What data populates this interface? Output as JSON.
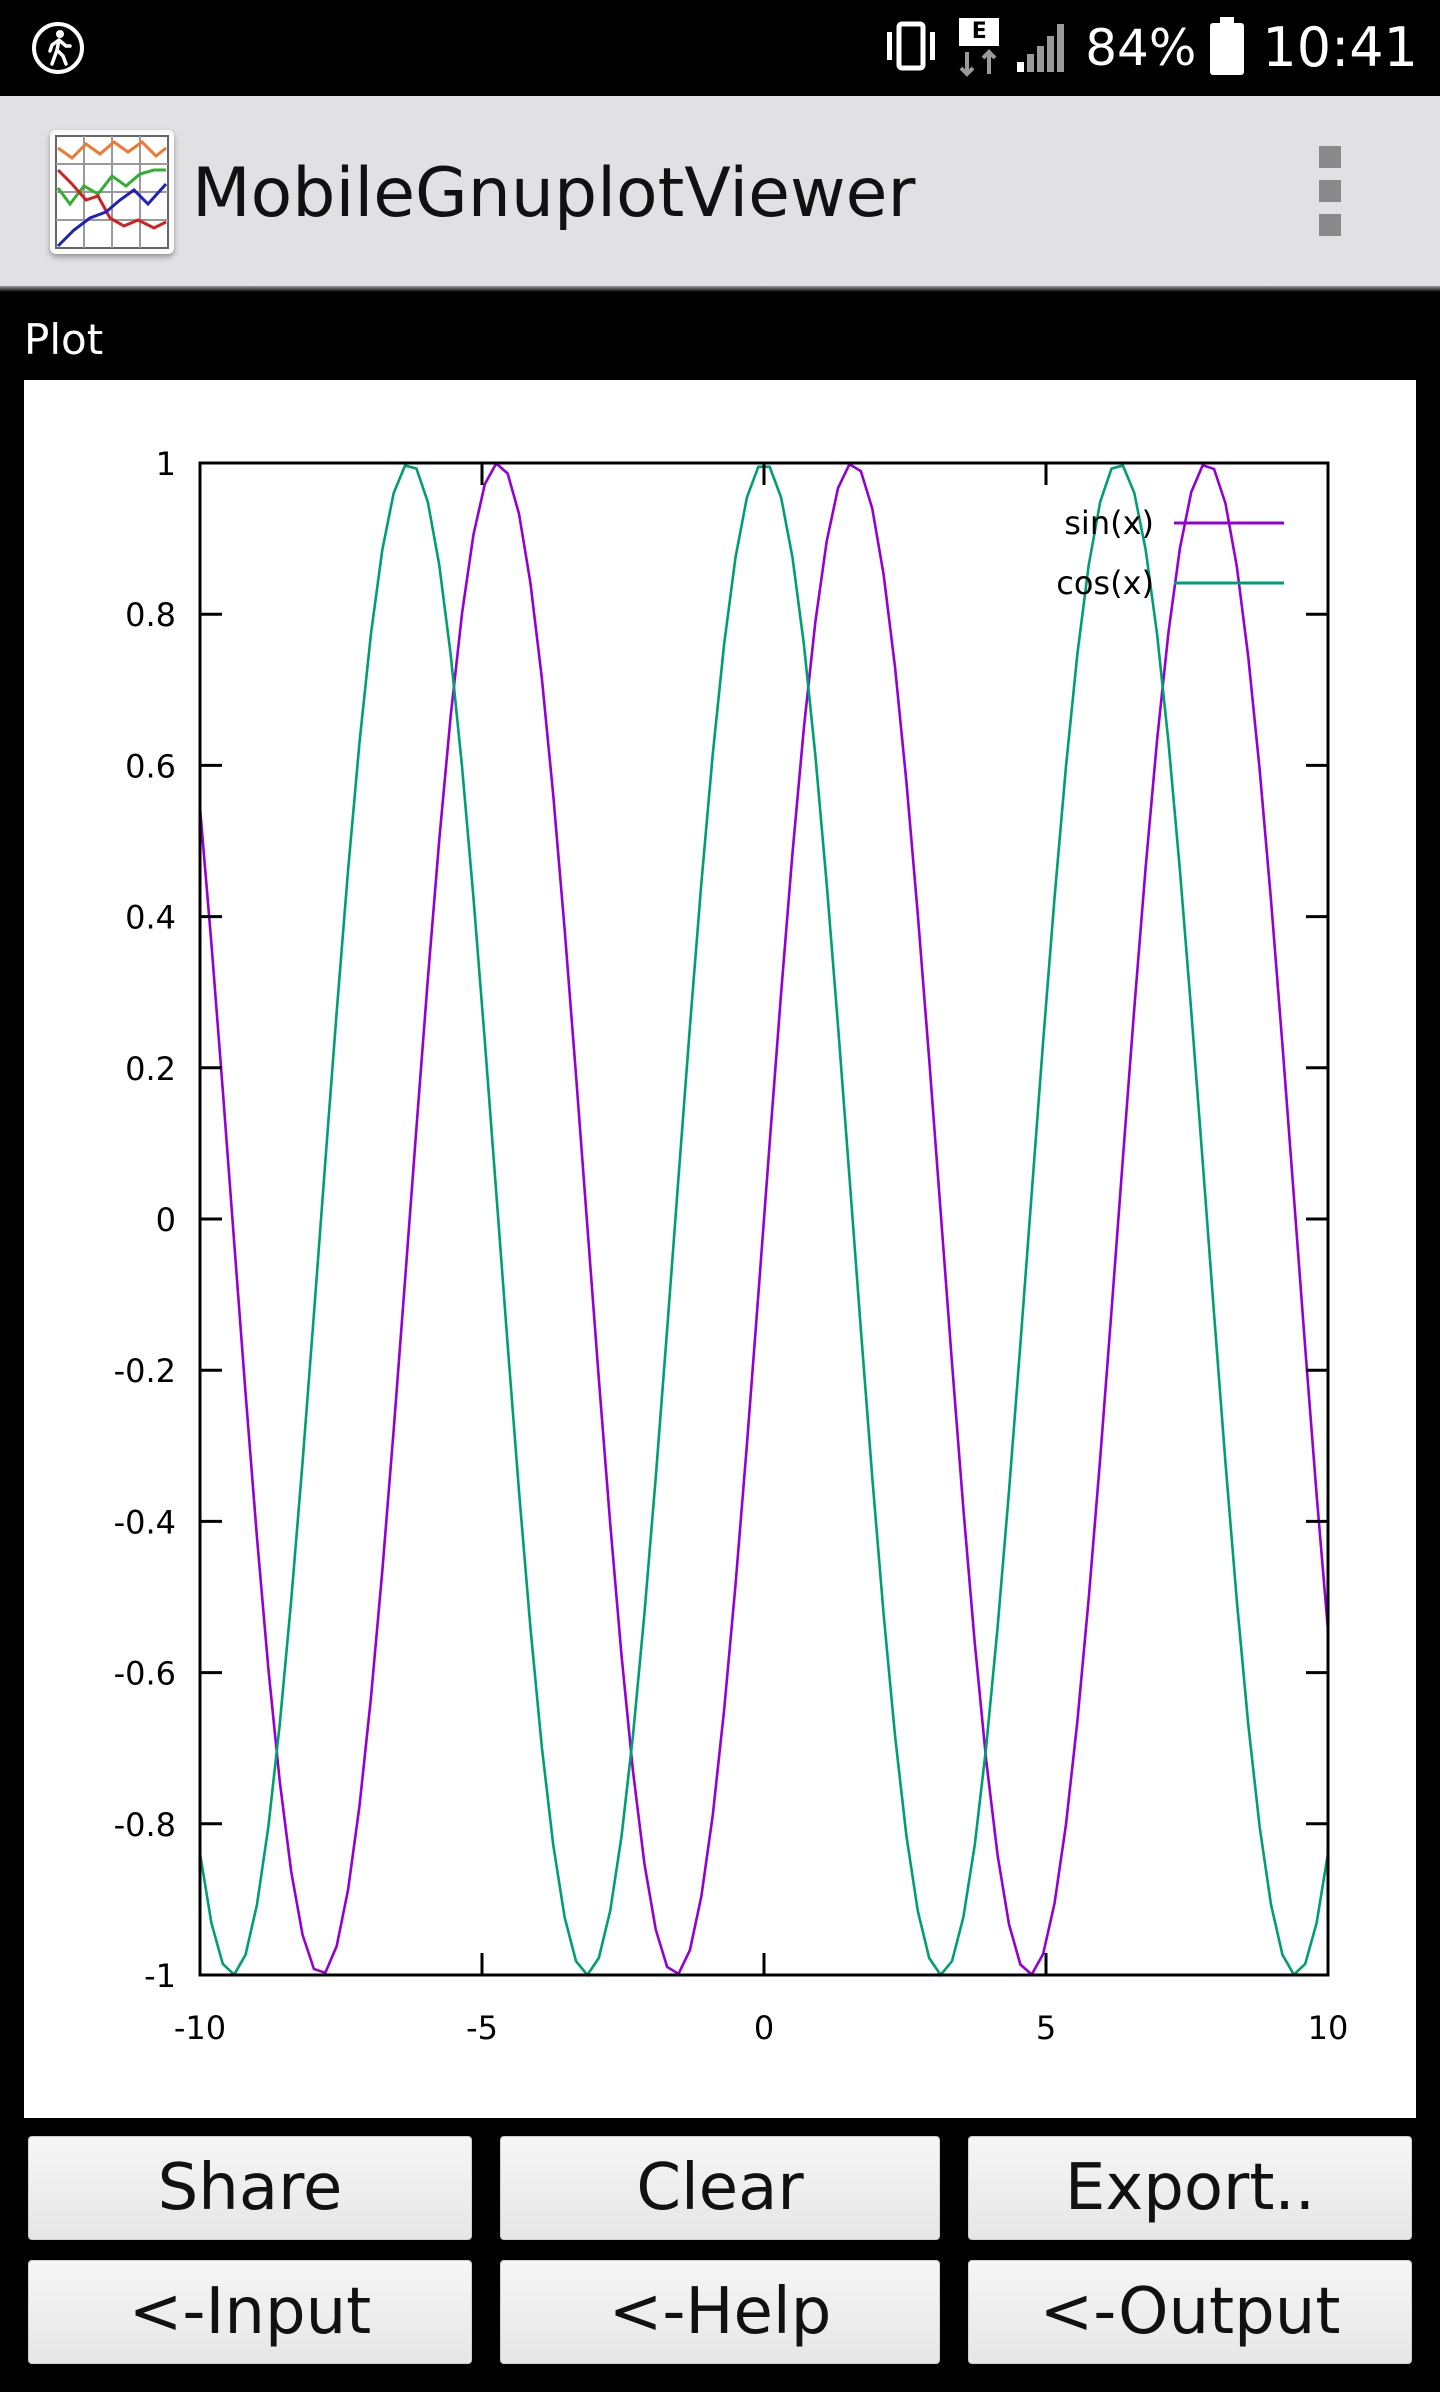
{
  "status_bar": {
    "battery": "84%",
    "time": "10:41",
    "network_badge": "E",
    "icons": [
      "activity-icon",
      "vibrate-icon",
      "data-transfer-icon",
      "signal-icon",
      "battery-icon"
    ]
  },
  "app_bar": {
    "title": "MobileGnuplotViewer",
    "icon": "app-chart-icon",
    "menu_icon": "overflow-menu-icon"
  },
  "section": {
    "label": "Plot"
  },
  "chart_data": {
    "type": "line",
    "x_ticks": [
      "-10",
      "-5",
      "0",
      "5",
      "10"
    ],
    "y_ticks": [
      "1",
      "0.8",
      "0.6",
      "0.4",
      "0.2",
      "0",
      "-0.2",
      "-0.4",
      "-0.6",
      "-0.8",
      "-1"
    ],
    "xlim": [
      -10,
      10
    ],
    "ylim": [
      -1,
      1
    ],
    "grid": false,
    "legend_position": "top-right",
    "series": [
      {
        "name": "sin(x)",
        "function": "sin(x)",
        "color": "#9400d3"
      },
      {
        "name": "cos(x)",
        "function": "cos(x)",
        "color": "#009e73"
      }
    ],
    "samples": 100
  },
  "buttons": {
    "share": "Share",
    "clear": "Clear",
    "export": "Export..",
    "input": "<-Input",
    "help": "<-Help",
    "output": "<-Output"
  }
}
